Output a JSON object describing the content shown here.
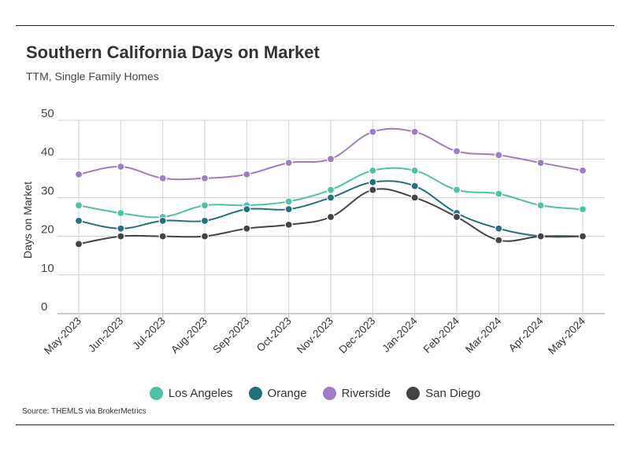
{
  "header": {
    "title": "Southern California Days on Market",
    "subtitle": "TTM, Single Family Homes"
  },
  "footer": {
    "source": "Source:  THEMLS via BrokerMetrics"
  },
  "chart_data": {
    "type": "line",
    "title": "Southern California Days on Market",
    "subtitle": "TTM, Single Family Homes",
    "xlabel": "",
    "ylabel": "Days on Market",
    "ylim": [
      0,
      50
    ],
    "yticks": [
      0,
      10,
      20,
      30,
      40,
      50
    ],
    "grid": true,
    "legend_position": "bottom",
    "categories": [
      "May-2023",
      "Jun-2023",
      "Jul-2023",
      "Aug-2023",
      "Sep-2023",
      "Oct-2023",
      "Nov-2023",
      "Dec-2023",
      "Jan-2024",
      "Feb-2024",
      "Mar-2024",
      "Apr-2024",
      "May-2024"
    ],
    "series": [
      {
        "name": "Los Angeles",
        "color": "#4fc1a7",
        "values": [
          28,
          26,
          25,
          28,
          28,
          29,
          32,
          37,
          37,
          32,
          31,
          28,
          27
        ]
      },
      {
        "name": "Orange",
        "color": "#23707c",
        "values": [
          24,
          22,
          24,
          24,
          27,
          27,
          30,
          34,
          33,
          26,
          22,
          20,
          20
        ]
      },
      {
        "name": "Riverside",
        "color": "#a07cc4",
        "values": [
          36,
          38,
          35,
          35,
          36,
          39,
          40,
          47,
          47,
          42,
          41,
          39,
          37
        ]
      },
      {
        "name": "San Diego",
        "color": "#444444",
        "values": [
          18,
          20,
          20,
          20,
          22,
          23,
          25,
          32,
          30,
          25,
          19,
          20,
          20
        ]
      }
    ]
  }
}
